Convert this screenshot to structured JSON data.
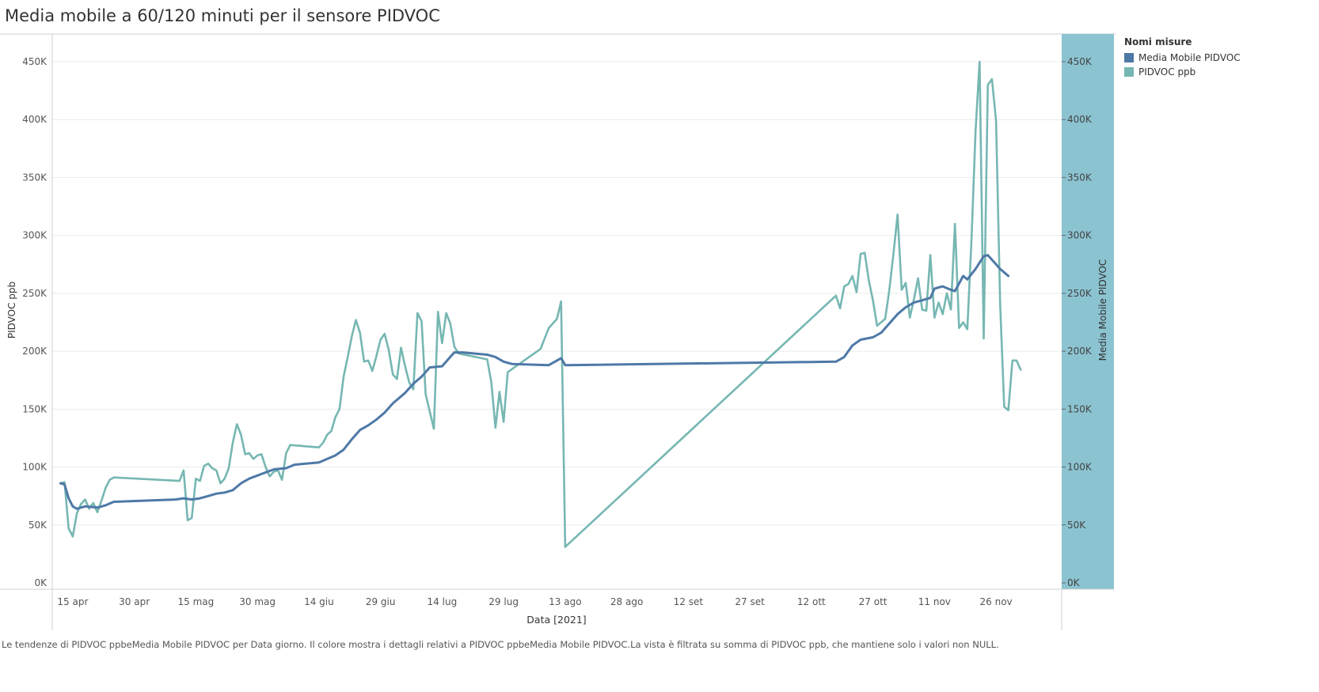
{
  "title": "Media mobile a 60/120 minuti per il sensore PIDVOC",
  "legend": {
    "title": "Nomi misure",
    "items": [
      {
        "label": "Media Mobile PIDVOC",
        "color": "#4e79a7"
      },
      {
        "label": "PIDVOC ppb",
        "color": "#76b7b2"
      }
    ]
  },
  "caption": "Le tendenze di PIDVOC ppbeMedia Mobile PIDVOC per Data giorno. Il colore mostra i dettagli relativi a PIDVOC ppbeMedia Mobile PIDVOC.La vista è filtrata su somma di PIDVOC ppb, che mantiene solo i valori non NULL.",
  "chart_data": {
    "type": "line",
    "xlabel": "Data [2021]",
    "ylabel": "PIDVOC ppb",
    "y2label": "Media Mobile PIDVOC",
    "ylim": [
      0,
      450000
    ],
    "yticks": [
      {
        "value": 0,
        "label": "0K"
      },
      {
        "value": 50000,
        "label": "50K"
      },
      {
        "value": 100000,
        "label": "100K"
      },
      {
        "value": 150000,
        "label": "150K"
      },
      {
        "value": 200000,
        "label": "200K"
      },
      {
        "value": 250000,
        "label": "250K"
      },
      {
        "value": 300000,
        "label": "300K"
      },
      {
        "value": 350000,
        "label": "350K"
      },
      {
        "value": 400000,
        "label": "400K"
      },
      {
        "value": 450000,
        "label": "450K"
      }
    ],
    "xlim": [
      "2021-04-10",
      "2021-12-12"
    ],
    "xticks": [
      {
        "date": "2021-04-15",
        "label": "15 apr"
      },
      {
        "date": "2021-04-30",
        "label": "30 apr"
      },
      {
        "date": "2021-05-15",
        "label": "15 mag"
      },
      {
        "date": "2021-05-30",
        "label": "30 mag"
      },
      {
        "date": "2021-06-14",
        "label": "14 giu"
      },
      {
        "date": "2021-06-29",
        "label": "29 giu"
      },
      {
        "date": "2021-07-14",
        "label": "14 lug"
      },
      {
        "date": "2021-07-29",
        "label": "29 lug"
      },
      {
        "date": "2021-08-13",
        "label": "13 ago"
      },
      {
        "date": "2021-08-28",
        "label": "28 ago"
      },
      {
        "date": "2021-09-12",
        "label": "12 set"
      },
      {
        "date": "2021-09-27",
        "label": "27 set"
      },
      {
        "date": "2021-10-12",
        "label": "12 ott"
      },
      {
        "date": "2021-10-27",
        "label": "27 ott"
      },
      {
        "date": "2021-11-11",
        "label": "11 nov"
      },
      {
        "date": "2021-11-26",
        "label": "26 nov"
      }
    ],
    "series": [
      {
        "name": "PIDVOC ppb",
        "color": "#76b7b2",
        "points": [
          [
            "2021-04-12",
            86000
          ],
          [
            "2021-04-13",
            87000
          ],
          [
            "2021-04-14",
            47000
          ],
          [
            "2021-04-15",
            40000
          ],
          [
            "2021-04-16",
            60000
          ],
          [
            "2021-04-17",
            68000
          ],
          [
            "2021-04-18",
            72000
          ],
          [
            "2021-04-19",
            64000
          ],
          [
            "2021-04-20",
            69000
          ],
          [
            "2021-04-21",
            61000
          ],
          [
            "2021-04-22",
            71000
          ],
          [
            "2021-04-23",
            82000
          ],
          [
            "2021-04-24",
            89000
          ],
          [
            "2021-04-25",
            91000
          ],
          [
            "2021-05-11",
            88000
          ],
          [
            "2021-05-12",
            97000
          ],
          [
            "2021-05-13",
            54000
          ],
          [
            "2021-05-14",
            56000
          ],
          [
            "2021-05-15",
            90000
          ],
          [
            "2021-05-16",
            88000
          ],
          [
            "2021-05-17",
            101000
          ],
          [
            "2021-05-18",
            103000
          ],
          [
            "2021-05-19",
            99000
          ],
          [
            "2021-05-20",
            97000
          ],
          [
            "2021-05-21",
            86000
          ],
          [
            "2021-05-22",
            90000
          ],
          [
            "2021-05-23",
            99000
          ],
          [
            "2021-05-24",
            121000
          ],
          [
            "2021-05-25",
            137000
          ],
          [
            "2021-05-26",
            128000
          ],
          [
            "2021-05-27",
            111000
          ],
          [
            "2021-05-28",
            112000
          ],
          [
            "2021-05-29",
            107000
          ],
          [
            "2021-05-30",
            110000
          ],
          [
            "2021-05-31",
            111000
          ],
          [
            "2021-06-01",
            100000
          ],
          [
            "2021-06-02",
            92000
          ],
          [
            "2021-06-03",
            96000
          ],
          [
            "2021-06-04",
            97000
          ],
          [
            "2021-06-05",
            89000
          ],
          [
            "2021-06-06",
            112000
          ],
          [
            "2021-06-07",
            119000
          ],
          [
            "2021-06-14",
            117000
          ],
          [
            "2021-06-15",
            121000
          ],
          [
            "2021-06-16",
            128000
          ],
          [
            "2021-06-17",
            131000
          ],
          [
            "2021-06-18",
            143000
          ],
          [
            "2021-06-19",
            150000
          ],
          [
            "2021-06-20",
            178000
          ],
          [
            "2021-06-21",
            195000
          ],
          [
            "2021-06-22",
            213000
          ],
          [
            "2021-06-23",
            227000
          ],
          [
            "2021-06-24",
            216000
          ],
          [
            "2021-06-25",
            191000
          ],
          [
            "2021-06-26",
            192000
          ],
          [
            "2021-06-27",
            183000
          ],
          [
            "2021-06-28",
            196000
          ],
          [
            "2021-06-29",
            210000
          ],
          [
            "2021-06-30",
            215000
          ],
          [
            "2021-07-01",
            201000
          ],
          [
            "2021-07-02",
            180000
          ],
          [
            "2021-07-03",
            176000
          ],
          [
            "2021-07-04",
            203000
          ],
          [
            "2021-07-05",
            187000
          ],
          [
            "2021-07-06",
            173000
          ],
          [
            "2021-07-07",
            167000
          ],
          [
            "2021-07-08",
            233000
          ],
          [
            "2021-07-09",
            226000
          ],
          [
            "2021-07-10",
            163000
          ],
          [
            "2021-07-11",
            148000
          ],
          [
            "2021-07-12",
            133000
          ],
          [
            "2021-07-13",
            234000
          ],
          [
            "2021-07-14",
            207000
          ],
          [
            "2021-07-15",
            233000
          ],
          [
            "2021-07-16",
            224000
          ],
          [
            "2021-07-17",
            204000
          ],
          [
            "2021-07-18",
            198000
          ],
          [
            "2021-07-25",
            193000
          ],
          [
            "2021-07-26",
            173000
          ],
          [
            "2021-07-27",
            134000
          ],
          [
            "2021-07-28",
            165000
          ],
          [
            "2021-07-29",
            139000
          ],
          [
            "2021-07-30",
            182000
          ],
          [
            "2021-08-07",
            202000
          ],
          [
            "2021-08-09",
            220000
          ],
          [
            "2021-08-11",
            228000
          ],
          [
            "2021-08-12",
            243000
          ],
          [
            "2021-08-13",
            31000
          ],
          [
            "2021-10-18",
            248000
          ],
          [
            "2021-10-19",
            237000
          ],
          [
            "2021-10-20",
            256000
          ],
          [
            "2021-10-21",
            258000
          ],
          [
            "2021-10-22",
            265000
          ],
          [
            "2021-10-23",
            251000
          ],
          [
            "2021-10-24",
            284000
          ],
          [
            "2021-10-25",
            285000
          ],
          [
            "2021-10-26",
            261000
          ],
          [
            "2021-10-27",
            244000
          ],
          [
            "2021-10-28",
            222000
          ],
          [
            "2021-10-30",
            228000
          ],
          [
            "2021-10-31",
            253000
          ],
          [
            "2021-11-01",
            284000
          ],
          [
            "2021-11-02",
            318000
          ],
          [
            "2021-11-03",
            253000
          ],
          [
            "2021-11-04",
            259000
          ],
          [
            "2021-11-05",
            229000
          ],
          [
            "2021-11-06",
            245000
          ],
          [
            "2021-11-07",
            263000
          ],
          [
            "2021-11-08",
            236000
          ],
          [
            "2021-11-09",
            235000
          ],
          [
            "2021-11-10",
            283000
          ],
          [
            "2021-11-11",
            229000
          ],
          [
            "2021-11-12",
            242000
          ],
          [
            "2021-11-13",
            232000
          ],
          [
            "2021-11-14",
            250000
          ],
          [
            "2021-11-15",
            236000
          ],
          [
            "2021-11-16",
            310000
          ],
          [
            "2021-11-17",
            220000
          ],
          [
            "2021-11-18",
            225000
          ],
          [
            "2021-11-19",
            219000
          ],
          [
            "2021-11-20",
            295000
          ],
          [
            "2021-11-21",
            390000
          ],
          [
            "2021-11-22",
            450000
          ],
          [
            "2021-11-23",
            211000
          ],
          [
            "2021-11-24",
            430000
          ],
          [
            "2021-11-25",
            435000
          ],
          [
            "2021-11-26",
            399000
          ],
          [
            "2021-11-27",
            240000
          ],
          [
            "2021-11-28",
            152000
          ],
          [
            "2021-11-29",
            149000
          ],
          [
            "2021-11-30",
            192000
          ],
          [
            "2021-12-01",
            192000
          ],
          [
            "2021-12-02",
            184000
          ]
        ]
      },
      {
        "name": "Media Mobile PIDVOC",
        "color": "#4e79a7",
        "points": [
          [
            "2021-04-12",
            86000
          ],
          [
            "2021-04-13",
            85000
          ],
          [
            "2021-04-14",
            73000
          ],
          [
            "2021-04-15",
            66000
          ],
          [
            "2021-04-16",
            64000
          ],
          [
            "2021-04-18",
            66000
          ],
          [
            "2021-04-21",
            65000
          ],
          [
            "2021-04-23",
            67000
          ],
          [
            "2021-04-25",
            70000
          ],
          [
            "2021-05-10",
            72000
          ],
          [
            "2021-05-12",
            73000
          ],
          [
            "2021-05-14",
            72000
          ],
          [
            "2021-05-16",
            73000
          ],
          [
            "2021-05-18",
            75000
          ],
          [
            "2021-05-20",
            77000
          ],
          [
            "2021-05-22",
            78000
          ],
          [
            "2021-05-24",
            80000
          ],
          [
            "2021-05-26",
            86000
          ],
          [
            "2021-05-28",
            90000
          ],
          [
            "2021-05-31",
            94000
          ],
          [
            "2021-06-03",
            98000
          ],
          [
            "2021-06-06",
            99000
          ],
          [
            "2021-06-08",
            102000
          ],
          [
            "2021-06-14",
            104000
          ],
          [
            "2021-06-16",
            107000
          ],
          [
            "2021-06-18",
            110000
          ],
          [
            "2021-06-20",
            115000
          ],
          [
            "2021-06-22",
            124000
          ],
          [
            "2021-06-24",
            132000
          ],
          [
            "2021-06-26",
            136000
          ],
          [
            "2021-06-28",
            141000
          ],
          [
            "2021-06-30",
            147000
          ],
          [
            "2021-07-02",
            155000
          ],
          [
            "2021-07-05",
            164000
          ],
          [
            "2021-07-07",
            172000
          ],
          [
            "2021-07-09",
            178000
          ],
          [
            "2021-07-11",
            186000
          ],
          [
            "2021-07-14",
            187000
          ],
          [
            "2021-07-16",
            195000
          ],
          [
            "2021-07-17",
            199000
          ],
          [
            "2021-07-19",
            199000
          ],
          [
            "2021-07-25",
            197000
          ],
          [
            "2021-07-27",
            195000
          ],
          [
            "2021-07-29",
            191000
          ],
          [
            "2021-07-31",
            189000
          ],
          [
            "2021-08-09",
            188000
          ],
          [
            "2021-08-12",
            194000
          ],
          [
            "2021-08-13",
            188000
          ],
          [
            "2021-10-18",
            191000
          ],
          [
            "2021-10-20",
            195000
          ],
          [
            "2021-10-22",
            205000
          ],
          [
            "2021-10-24",
            210000
          ],
          [
            "2021-10-27",
            212000
          ],
          [
            "2021-10-29",
            216000
          ],
          [
            "2021-10-31",
            224000
          ],
          [
            "2021-11-02",
            232000
          ],
          [
            "2021-11-04",
            238000
          ],
          [
            "2021-11-06",
            242000
          ],
          [
            "2021-11-08",
            244000
          ],
          [
            "2021-11-10",
            246000
          ],
          [
            "2021-11-11",
            254000
          ],
          [
            "2021-11-13",
            256000
          ],
          [
            "2021-11-15",
            253000
          ],
          [
            "2021-11-16",
            252000
          ],
          [
            "2021-11-18",
            265000
          ],
          [
            "2021-11-19",
            262000
          ],
          [
            "2021-11-21",
            271000
          ],
          [
            "2021-11-23",
            282000
          ],
          [
            "2021-11-24",
            283000
          ],
          [
            "2021-11-25",
            279000
          ],
          [
            "2021-11-27",
            271000
          ],
          [
            "2021-11-29",
            265000
          ]
        ]
      }
    ]
  }
}
